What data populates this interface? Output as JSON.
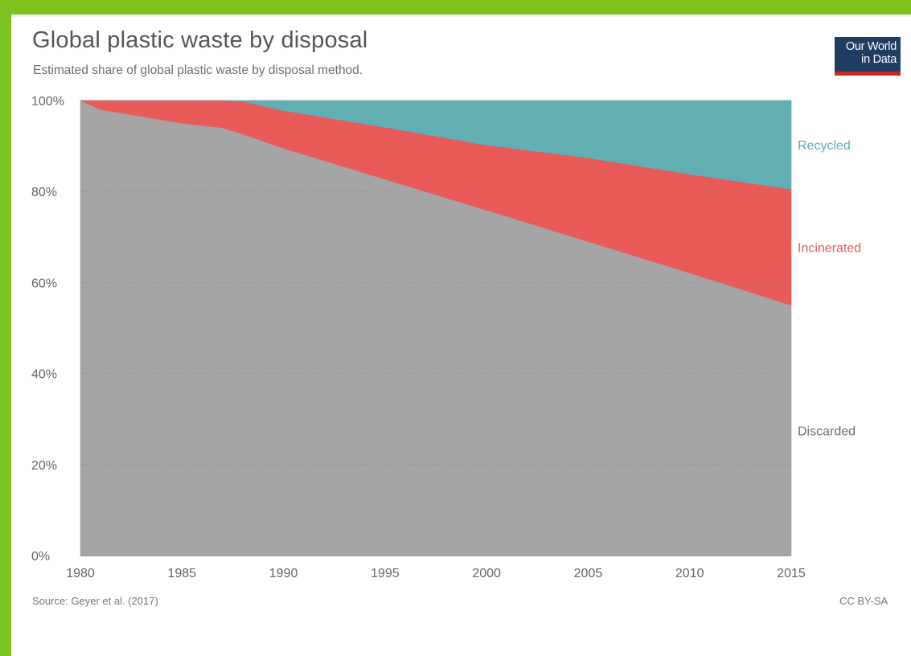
{
  "header": {
    "title": "Global plastic waste by disposal",
    "subtitle": "Estimated share of global plastic waste by disposal method."
  },
  "logo": {
    "line1": "Our World",
    "line2": "in Data"
  },
  "footer": {
    "source": "Source: Geyer et al. (2017)",
    "license": "CC BY-SA"
  },
  "colors": {
    "frame": "#7ec21d",
    "discarded": "#a5a5a5",
    "incinerated": "#e85b58",
    "recycled": "#61aeb3",
    "logo_bg": "#1d3d63",
    "logo_bar": "#ce261e"
  },
  "chart_data": {
    "type": "area",
    "stacked": true,
    "x": [
      1980,
      1981,
      1985,
      1987,
      1988,
      1990,
      1995,
      2000,
      2005,
      2010,
      2015
    ],
    "series": [
      {
        "name": "Discarded",
        "color": "#a5a5a5",
        "values": [
          100,
          98,
          95,
          94,
          92.6,
          89.5,
          82.7,
          75.9,
          69.0,
          62.1,
          55.0
        ]
      },
      {
        "name": "Incinerated",
        "color": "#e85b58",
        "values": [
          0,
          2,
          5,
          6,
          7.2,
          8.3,
          11.4,
          14.3,
          18.4,
          21.7,
          25.5
        ]
      },
      {
        "name": "Recycled",
        "color": "#61aeb3",
        "values": [
          0,
          0,
          0,
          0,
          0.2,
          2.2,
          5.9,
          9.8,
          12.6,
          16.2,
          19.5
        ]
      }
    ],
    "xticks": [
      "1980",
      "1985",
      "1990",
      "1995",
      "2000",
      "2005",
      "2010",
      "2015"
    ],
    "yticks": [
      "0%",
      "20%",
      "40%",
      "60%",
      "80%",
      "100%"
    ],
    "xlim": [
      1980,
      2015
    ],
    "ylim": [
      0,
      100
    ],
    "grid": "horizontal-dashed",
    "legend": "right-inline"
  }
}
